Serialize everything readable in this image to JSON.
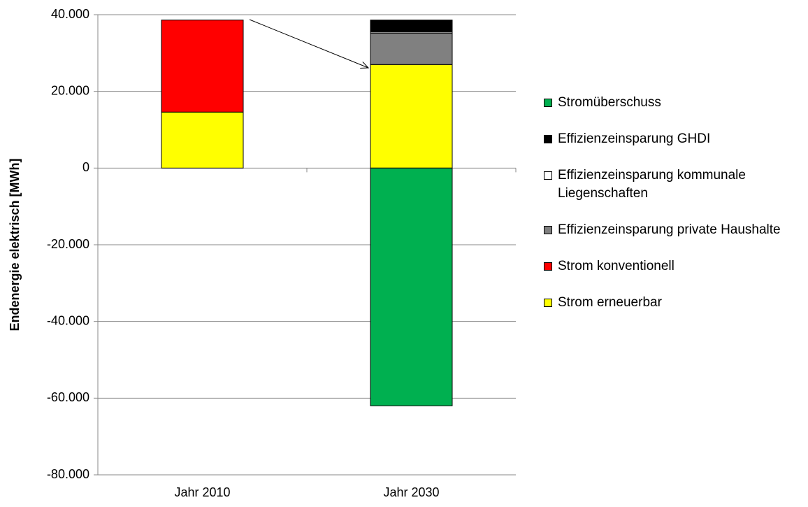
{
  "chart_data": {
    "type": "stacked_bar",
    "y_label": "Endenergie elektrisch [MWh]",
    "categories": [
      "Jahr 2010",
      "Jahr 2030"
    ],
    "series": [
      {
        "name": "Strom erneuerbar",
        "color": "#ffff00",
        "values": [
          14600,
          27000
        ]
      },
      {
        "name": "Strom konventionell",
        "color": "#ff0000",
        "values": [
          24000,
          0
        ]
      },
      {
        "name": "Effizienzeinsparung private Haushalte",
        "color": "#808080",
        "values": [
          0,
          8200
        ]
      },
      {
        "name": "Effizienzeinsparung kommunale Liegenschaften",
        "color": "#ffffff",
        "values": [
          0,
          300
        ]
      },
      {
        "name": "Effizienzeinsparung GHDI",
        "color": "#000000",
        "values": [
          0,
          3100
        ]
      },
      {
        "name": "Stromüberschuss",
        "color": "#00b050",
        "values": [
          0,
          -62000
        ]
      }
    ],
    "ylim": [
      -80000,
      40000
    ],
    "yticks": [
      {
        "value": -80000,
        "label": "-80.000"
      },
      {
        "value": -60000,
        "label": "-60.000"
      },
      {
        "value": -40000,
        "label": "-40.000"
      },
      {
        "value": -20000,
        "label": "-20.000"
      },
      0,
      {
        "value": 20000,
        "label": "20.000"
      },
      {
        "value": 40000,
        "label": "40.000"
      }
    ],
    "grid": true,
    "legend": "right"
  }
}
